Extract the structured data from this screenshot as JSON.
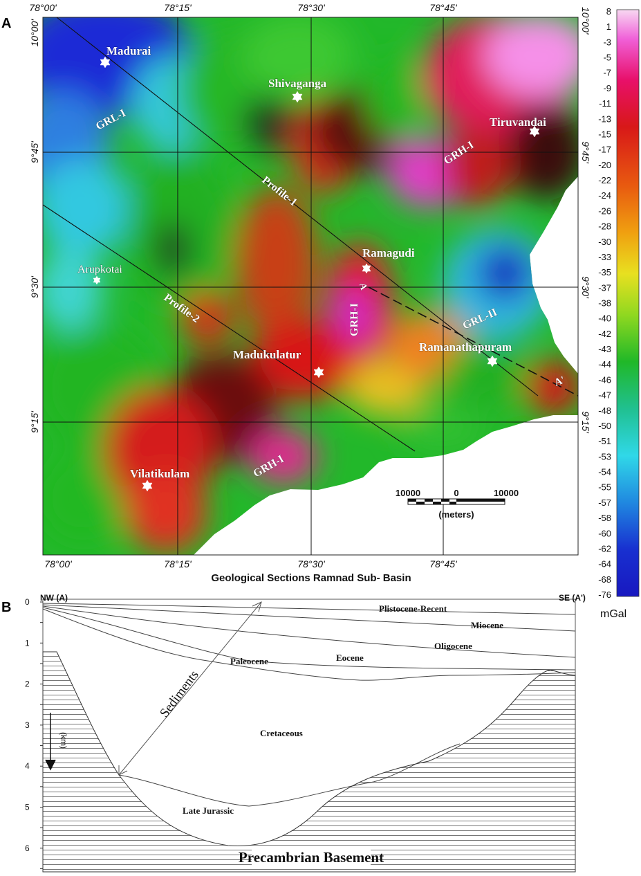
{
  "panel_a": {
    "label": "A",
    "longitude_labels": [
      "78°00'",
      "78°15'",
      "78°30'",
      "78°45'"
    ],
    "top_right_label": "10°00'",
    "latitude_labels": [
      "10°00'",
      "9°45'",
      "9°30'",
      "9°15'"
    ],
    "places": [
      {
        "name": "Madurai"
      },
      {
        "name": "Shivaganga"
      },
      {
        "name": "Tiruvandai"
      },
      {
        "name": "Arupkotai"
      },
      {
        "name": "Ramagudi"
      },
      {
        "name": "Madukulatur"
      },
      {
        "name": "Ramanathapuram"
      },
      {
        "name": "Vilatikulam"
      }
    ],
    "features": {
      "grl1": "GRL-I",
      "grh1_ne": "GRH-I",
      "grh1_center": "GRH-I",
      "grh1_south": "GRH-I",
      "grl2": "GRL-II",
      "profile1": "Profile-1",
      "profile2": "Profile-2",
      "section_start": "A",
      "section_end": "A'"
    },
    "scale_bar": {
      "left": "10000",
      "mid": "0",
      "right": "10000",
      "unit": "(meters)"
    },
    "caption": "Geological Sections Ramnad Sub- Basin",
    "colorbar": {
      "labels": [
        "8",
        "1",
        "-3",
        "-5",
        "-7",
        "-9",
        "-11",
        "-13",
        "-15",
        "-17",
        "-20",
        "-22",
        "-24",
        "-26",
        "-28",
        "-30",
        "-33",
        "-35",
        "-37",
        "-38",
        "-40",
        "-42",
        "-43",
        "-44",
        "-46",
        "-47",
        "-48",
        "-50",
        "-51",
        "-53",
        "-54",
        "-55",
        "-57",
        "-58",
        "-60",
        "-62",
        "-64",
        "-68",
        "-76"
      ],
      "unit": "mGal"
    }
  },
  "panel_b": {
    "label": "B",
    "left_end": "NW (A)",
    "right_end": "SE (A')",
    "depth_ticks": [
      "0",
      "1",
      "2",
      "3",
      "4",
      "5",
      "6"
    ],
    "depth_unit": "(km)",
    "layers": {
      "plistocene": "Plistocene-Recent",
      "miocene": "Miocene",
      "oligocene": "Oligocene",
      "eocene": "Eocene",
      "paleocene": "Paleocene",
      "cretaceous": "Cretaceous",
      "late_jurassic": "Late Jurassic",
      "sediments": "Sediments",
      "basement": "Precambrian Basement"
    }
  },
  "colors": {
    "low": "#1a2bd6",
    "cyan": "#33d2e0",
    "green": "#1fbe1f",
    "red": "#d41414",
    "magenta": "#e62ec8",
    "pink": "#f7c6ef"
  }
}
